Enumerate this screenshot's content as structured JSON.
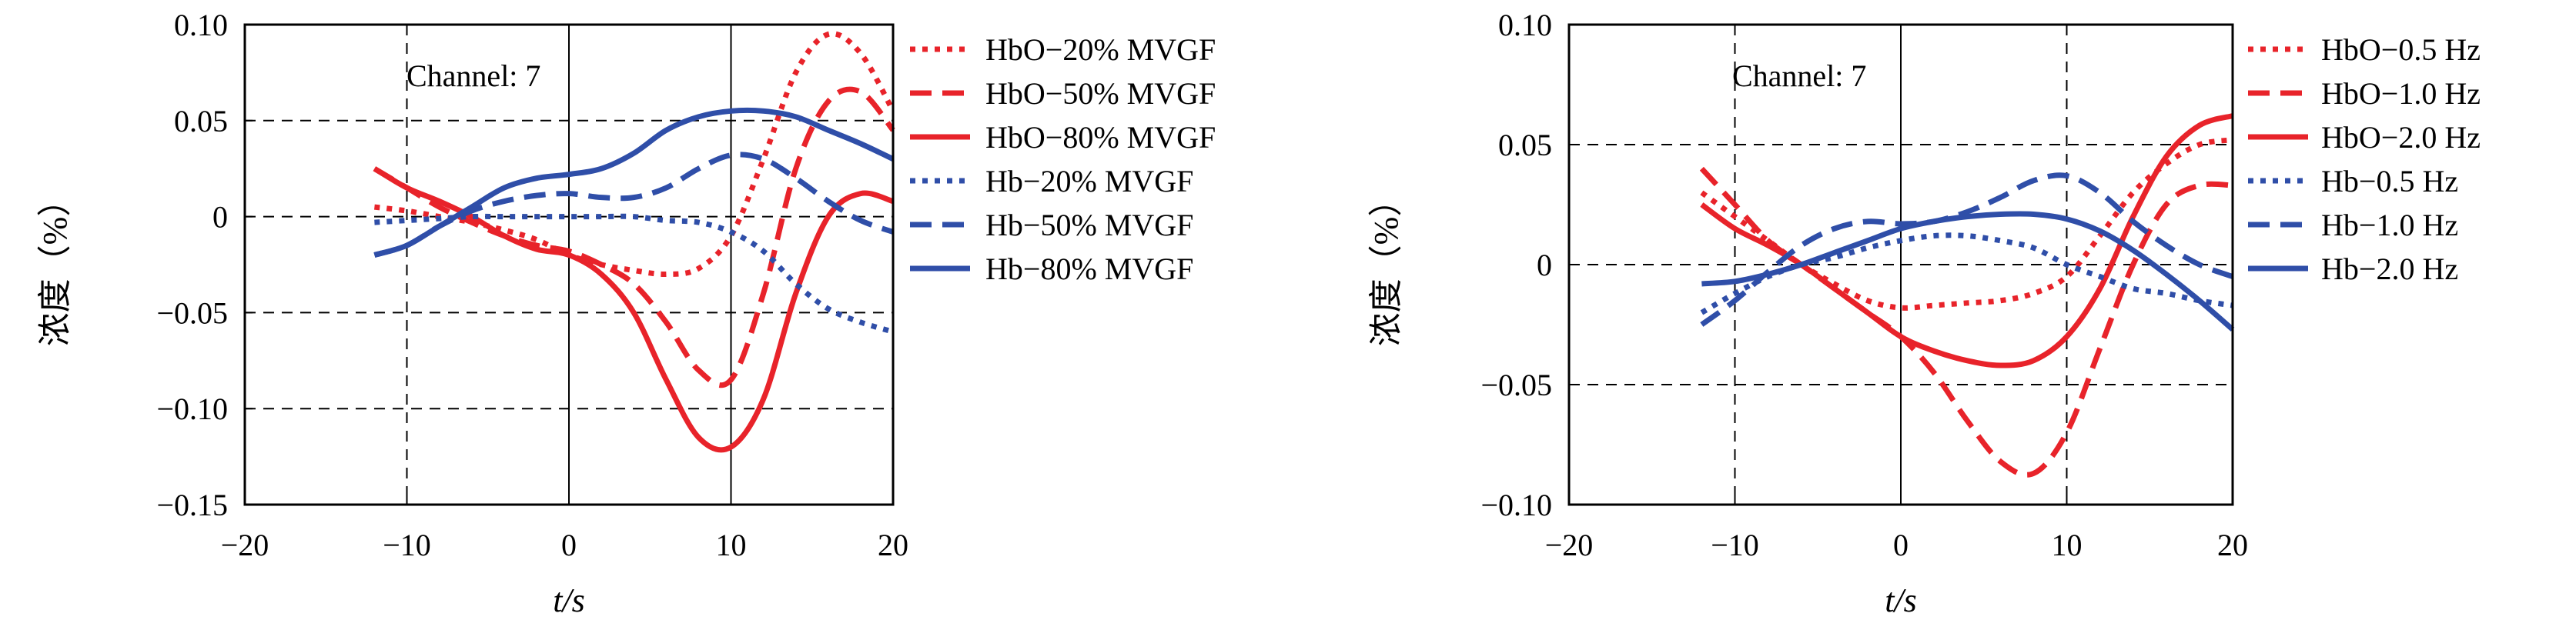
{
  "chart_data": [
    {
      "type": "line",
      "annotation": "Channel: 7",
      "xlabel": "t/s",
      "ylabel": "浓度（%）",
      "xlim": [
        -20,
        20
      ],
      "ylim": [
        -0.15,
        0.1
      ],
      "xticks": [
        -20,
        -10,
        0,
        10,
        20
      ],
      "xtick_labels": [
        "−20",
        "−10",
        "0",
        "10",
        "20"
      ],
      "yticks": [
        0.1,
        0.05,
        0,
        -0.05,
        -0.1,
        -0.15
      ],
      "ytick_labels": [
        "0.10",
        "0.05",
        "0",
        "−0.05",
        "−0.10",
        "−0.15"
      ],
      "grid": "dashed at x = -10 and 10 and at y ticks; solid lines at x = 0 and 10",
      "legend_position": "right, outside",
      "series": [
        {
          "name": "HbO−20% MVGF",
          "color": "#e8232a",
          "style": "dotted",
          "x": [
            -12,
            -10,
            -8,
            -6,
            -4,
            -2,
            0,
            2,
            4,
            6,
            8,
            10,
            12,
            14,
            16,
            18,
            20
          ],
          "y": [
            0.005,
            0.003,
            0.0,
            -0.003,
            -0.007,
            -0.012,
            -0.02,
            -0.025,
            -0.028,
            -0.03,
            -0.027,
            -0.01,
            0.03,
            0.075,
            0.095,
            0.085,
            0.055
          ]
        },
        {
          "name": "HbO−50% MVGF",
          "color": "#e8232a",
          "style": "dashed",
          "x": [
            -12,
            -10,
            -8,
            -6,
            -4,
            -2,
            0,
            2,
            4,
            6,
            8,
            10,
            12,
            14,
            16,
            18,
            20
          ],
          "y": [
            0.025,
            0.015,
            0.005,
            -0.003,
            -0.01,
            -0.015,
            -0.018,
            -0.025,
            -0.035,
            -0.055,
            -0.08,
            -0.085,
            -0.04,
            0.025,
            0.06,
            0.065,
            0.045
          ]
        },
        {
          "name": "HbO−80% MVGF",
          "color": "#e8232a",
          "style": "solid",
          "x": [
            -12,
            -10,
            -8,
            -6,
            -4,
            -2,
            0,
            2,
            4,
            6,
            8,
            10,
            12,
            14,
            16,
            18,
            20
          ],
          "y": [
            0.025,
            0.015,
            0.008,
            0.0,
            -0.01,
            -0.017,
            -0.02,
            -0.03,
            -0.05,
            -0.085,
            -0.115,
            -0.12,
            -0.095,
            -0.04,
            0.0,
            0.012,
            0.008
          ]
        },
        {
          "name": "Hb−20% MVGF",
          "color": "#2f4ea8",
          "style": "dotted",
          "x": [
            -12,
            -10,
            -8,
            -6,
            -4,
            -2,
            0,
            2,
            4,
            6,
            8,
            10,
            12,
            14,
            16,
            18,
            20
          ],
          "y": [
            -0.003,
            -0.002,
            -0.001,
            0.0,
            0.0,
            0.0,
            0.0,
            0.0,
            0.0,
            -0.002,
            -0.003,
            -0.008,
            -0.018,
            -0.035,
            -0.048,
            -0.055,
            -0.06
          ]
        },
        {
          "name": "Hb−50% MVGF",
          "color": "#2f4ea8",
          "style": "dashed",
          "x": [
            -12,
            -10,
            -8,
            -6,
            -4,
            -2,
            0,
            2,
            4,
            6,
            8,
            10,
            12,
            14,
            16,
            18,
            20
          ],
          "y": [
            -0.02,
            -0.015,
            -0.005,
            0.003,
            0.008,
            0.011,
            0.012,
            0.01,
            0.01,
            0.015,
            0.025,
            0.032,
            0.03,
            0.02,
            0.008,
            -0.002,
            -0.008
          ]
        },
        {
          "name": "Hb−80% MVGF",
          "color": "#2f4ea8",
          "style": "solid",
          "x": [
            -12,
            -10,
            -8,
            -6,
            -4,
            -2,
            0,
            2,
            4,
            6,
            8,
            10,
            12,
            14,
            16,
            18,
            20
          ],
          "y": [
            -0.02,
            -0.015,
            -0.005,
            0.005,
            0.015,
            0.02,
            0.022,
            0.025,
            0.033,
            0.045,
            0.052,
            0.055,
            0.055,
            0.052,
            0.045,
            0.038,
            0.03
          ]
        }
      ]
    },
    {
      "type": "line",
      "annotation": "Channel: 7",
      "xlabel": "t/s",
      "ylabel": "浓度（%）",
      "xlim": [
        -20,
        20
      ],
      "ylim": [
        -0.1,
        0.1
      ],
      "xticks": [
        -20,
        -10,
        0,
        10,
        20
      ],
      "xtick_labels": [
        "−20",
        "−10",
        "0",
        "10",
        "20"
      ],
      "yticks": [
        0.1,
        0.05,
        0,
        -0.05,
        -0.1
      ],
      "ytick_labels": [
        "0.10",
        "0.05",
        "0",
        "−0.05",
        "−0.10"
      ],
      "grid": "dashed at x = -10 and 10 and at y ticks; solid line at x = 0",
      "legend_position": "right, outside",
      "series": [
        {
          "name": "HbO−0.5 Hz",
          "color": "#e8232a",
          "style": "dotted",
          "x": [
            -12,
            -10,
            -8,
            -6,
            -4,
            -2,
            0,
            2,
            4,
            6,
            8,
            10,
            12,
            14,
            16,
            18,
            20
          ],
          "y": [
            0.03,
            0.02,
            0.01,
            0.0,
            -0.008,
            -0.015,
            -0.018,
            -0.017,
            -0.016,
            -0.015,
            -0.012,
            -0.005,
            0.012,
            0.03,
            0.042,
            0.05,
            0.052
          ]
        },
        {
          "name": "HbO−1.0 Hz",
          "color": "#e8232a",
          "style": "dashed",
          "x": [
            -12,
            -10,
            -8,
            -6,
            -4,
            -2,
            0,
            2,
            4,
            6,
            8,
            10,
            12,
            14,
            16,
            18,
            20
          ],
          "y": [
            0.04,
            0.025,
            0.01,
            0.0,
            -0.01,
            -0.02,
            -0.03,
            -0.045,
            -0.065,
            -0.082,
            -0.087,
            -0.07,
            -0.035,
            0.0,
            0.025,
            0.033,
            0.033
          ]
        },
        {
          "name": "HbO−2.0 Hz",
          "color": "#e8232a",
          "style": "solid",
          "x": [
            -12,
            -10,
            -8,
            -6,
            -4,
            -2,
            0,
            2,
            4,
            6,
            8,
            10,
            12,
            14,
            16,
            18,
            20
          ],
          "y": [
            0.025,
            0.015,
            0.008,
            0.0,
            -0.01,
            -0.02,
            -0.03,
            -0.036,
            -0.04,
            -0.042,
            -0.04,
            -0.03,
            -0.01,
            0.02,
            0.045,
            0.058,
            0.062
          ]
        },
        {
          "name": "Hb−0.5 Hz",
          "color": "#2f4ea8",
          "style": "dotted",
          "x": [
            -12,
            -10,
            -8,
            -6,
            -4,
            -2,
            0,
            2,
            4,
            6,
            8,
            10,
            12,
            14,
            16,
            18,
            20
          ],
          "y": [
            -0.02,
            -0.012,
            -0.005,
            0.0,
            0.003,
            0.007,
            0.01,
            0.012,
            0.012,
            0.01,
            0.007,
            0.0,
            -0.005,
            -0.01,
            -0.012,
            -0.015,
            -0.017
          ]
        },
        {
          "name": "Hb−1.0 Hz",
          "color": "#2f4ea8",
          "style": "dashed",
          "x": [
            -12,
            -10,
            -8,
            -6,
            -4,
            -2,
            0,
            2,
            4,
            6,
            8,
            10,
            12,
            14,
            16,
            18,
            20
          ],
          "y": [
            -0.025,
            -0.015,
            -0.003,
            0.008,
            0.015,
            0.018,
            0.017,
            0.018,
            0.022,
            0.028,
            0.035,
            0.037,
            0.03,
            0.018,
            0.008,
            0.0,
            -0.005
          ]
        },
        {
          "name": "Hb−2.0 Hz",
          "color": "#2f4ea8",
          "style": "solid",
          "x": [
            -12,
            -10,
            -8,
            -6,
            -4,
            -2,
            0,
            2,
            4,
            6,
            8,
            10,
            12,
            14,
            16,
            18,
            20
          ],
          "y": [
            -0.008,
            -0.007,
            -0.004,
            0.0,
            0.005,
            0.01,
            0.015,
            0.018,
            0.02,
            0.021,
            0.021,
            0.019,
            0.014,
            0.006,
            -0.004,
            -0.015,
            -0.027
          ]
        }
      ]
    }
  ]
}
